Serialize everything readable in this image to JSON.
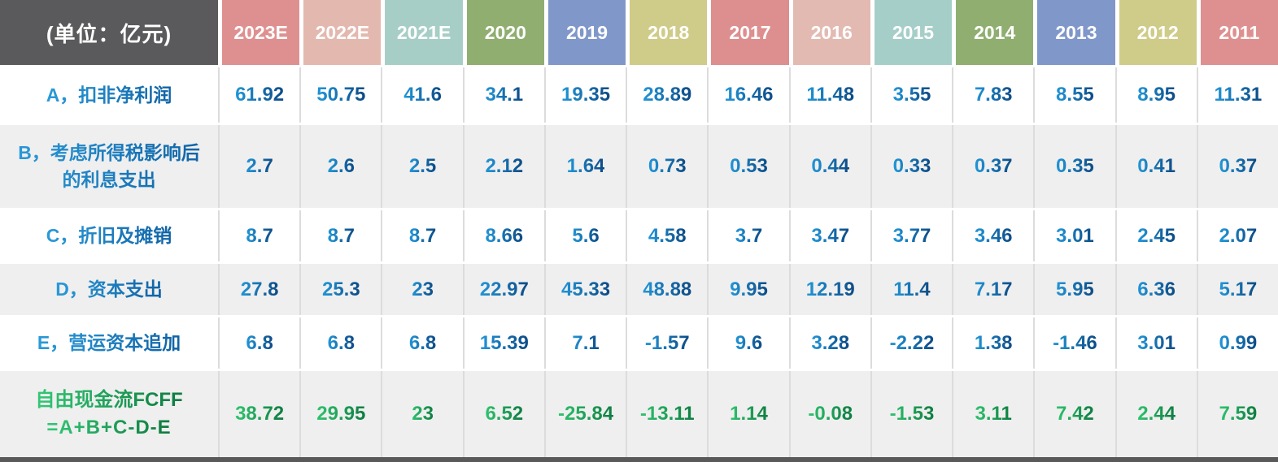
{
  "unit_label": "(单位：亿元)",
  "columns": [
    {
      "label": "2023E",
      "color": "#de9090"
    },
    {
      "label": "2022E",
      "color": "#e3b8ae"
    },
    {
      "label": "2021E",
      "color": "#a7cec6"
    },
    {
      "label": "2020",
      "color": "#8fae70"
    },
    {
      "label": "2019",
      "color": "#8097c9"
    },
    {
      "label": "2018",
      "color": "#cfcb89"
    },
    {
      "label": "2017",
      "color": "#dd8e8e"
    },
    {
      "label": "2016",
      "color": "#e3bab2"
    },
    {
      "label": "2015",
      "color": "#a6cec9"
    },
    {
      "label": "2014",
      "color": "#8fae70"
    },
    {
      "label": "2013",
      "color": "#8097c9"
    },
    {
      "label": "2012",
      "color": "#cfcb89"
    },
    {
      "label": "2011",
      "color": "#de9090"
    }
  ],
  "rows": [
    {
      "label": "A，扣非净利润",
      "style": "blue",
      "values": [
        "61.92",
        "50.75",
        "41.6",
        "34.1",
        "19.35",
        "28.89",
        "16.46",
        "11.48",
        "3.55",
        "7.83",
        "8.55",
        "8.95",
        "11.31"
      ]
    },
    {
      "label": "B，考虑所得税影响后的利息支出",
      "style": "blue",
      "values": [
        "2.7",
        "2.6",
        "2.5",
        "2.12",
        "1.64",
        "0.73",
        "0.53",
        "0.44",
        "0.33",
        "0.37",
        "0.35",
        "0.41",
        "0.37"
      ]
    },
    {
      "label": "C，折旧及摊销",
      "style": "blue",
      "values": [
        "8.7",
        "8.7",
        "8.7",
        "8.66",
        "5.6",
        "4.58",
        "3.7",
        "3.47",
        "3.77",
        "3.46",
        "3.01",
        "2.45",
        "2.07"
      ]
    },
    {
      "label": "D，资本支出",
      "style": "blue",
      "values": [
        "27.8",
        "25.3",
        "23",
        "22.97",
        "45.33",
        "48.88",
        "9.95",
        "12.19",
        "11.4",
        "7.17",
        "5.95",
        "6.36",
        "5.17"
      ]
    },
    {
      "label": "E，营运资本追加",
      "style": "blue",
      "values": [
        "6.8",
        "6.8",
        "6.8",
        "15.39",
        "7.1",
        "-1.57",
        "9.6",
        "3.28",
        "-2.22",
        "1.38",
        "-1.46",
        "3.01",
        "0.99"
      ]
    },
    {
      "label": "自由现金流FCFF",
      "label_line2": "=A+B+C-D-E",
      "style": "green",
      "values": [
        "38.72",
        "29.95",
        "23",
        "6.52",
        "-25.84",
        "-13.11",
        "1.14",
        "-0.08",
        "-1.53",
        "3.11",
        "7.42",
        "2.44",
        "7.59"
      ]
    }
  ],
  "colors": {
    "header_label_bg": "#5a5a5c",
    "stripe": "#efefef",
    "grid_line": "#dcdcdc",
    "bottom_bar": "#595959",
    "blue_label_from": "#2a9ad9",
    "blue_label_to": "#0f62a5",
    "blue_value_from": "#2196d8",
    "blue_value_to": "#0d4a85",
    "green_from": "#33c876",
    "green_to": "#0d7a3e",
    "header_text": "#ffffff"
  },
  "chart_data": {
    "type": "table",
    "title": "(单位：亿元)",
    "categories": [
      "2023E",
      "2022E",
      "2021E",
      "2020",
      "2019",
      "2018",
      "2017",
      "2016",
      "2015",
      "2014",
      "2013",
      "2012",
      "2011"
    ],
    "series": [
      {
        "name": "A，扣非净利润",
        "values": [
          61.92,
          50.75,
          41.6,
          34.1,
          19.35,
          28.89,
          16.46,
          11.48,
          3.55,
          7.83,
          8.55,
          8.95,
          11.31
        ]
      },
      {
        "name": "B，考虑所得税影响后的利息支出",
        "values": [
          2.7,
          2.6,
          2.5,
          2.12,
          1.64,
          0.73,
          0.53,
          0.44,
          0.33,
          0.37,
          0.35,
          0.41,
          0.37
        ]
      },
      {
        "name": "C，折旧及摊销",
        "values": [
          8.7,
          8.7,
          8.7,
          8.66,
          5.6,
          4.58,
          3.7,
          3.47,
          3.77,
          3.46,
          3.01,
          2.45,
          2.07
        ]
      },
      {
        "name": "D，资本支出",
        "values": [
          27.8,
          25.3,
          23,
          22.97,
          45.33,
          48.88,
          9.95,
          12.19,
          11.4,
          7.17,
          5.95,
          6.36,
          5.17
        ]
      },
      {
        "name": "E，营运资本追加",
        "values": [
          6.8,
          6.8,
          6.8,
          15.39,
          7.1,
          -1.57,
          9.6,
          3.28,
          -2.22,
          1.38,
          -1.46,
          3.01,
          0.99
        ]
      },
      {
        "name": "自由现金流FCFF =A+B+C-D-E",
        "values": [
          38.72,
          29.95,
          23,
          6.52,
          -25.84,
          -13.11,
          1.14,
          -0.08,
          -1.53,
          3.11,
          7.42,
          2.44,
          7.59
        ]
      }
    ]
  }
}
